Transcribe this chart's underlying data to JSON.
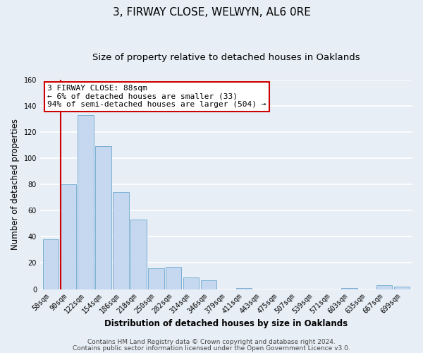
{
  "title": "3, FIRWAY CLOSE, WELWYN, AL6 0RE",
  "subtitle": "Size of property relative to detached houses in Oaklands",
  "xlabel": "Distribution of detached houses by size in Oaklands",
  "ylabel": "Number of detached properties",
  "bar_labels": [
    "58sqm",
    "90sqm",
    "122sqm",
    "154sqm",
    "186sqm",
    "218sqm",
    "250sqm",
    "282sqm",
    "314sqm",
    "346sqm",
    "379sqm",
    "411sqm",
    "443sqm",
    "475sqm",
    "507sqm",
    "539sqm",
    "571sqm",
    "603sqm",
    "635sqm",
    "667sqm",
    "699sqm"
  ],
  "bar_heights": [
    38,
    80,
    133,
    109,
    74,
    53,
    16,
    17,
    9,
    7,
    0,
    1,
    0,
    0,
    0,
    0,
    0,
    1,
    0,
    3,
    2
  ],
  "bar_color": "#c5d8f0",
  "bar_edge_color": "#7bafd4",
  "highlight_line_color": "#cc0000",
  "annotation_line1": "3 FIRWAY CLOSE: 88sqm",
  "annotation_line2": "← 6% of detached houses are smaller (33)",
  "annotation_line3": "94% of semi-detached houses are larger (504) →",
  "annotation_box_color": "#ffffff",
  "annotation_box_edge": "#cc0000",
  "ylim": [
    0,
    160
  ],
  "yticks": [
    0,
    20,
    40,
    60,
    80,
    100,
    120,
    140,
    160
  ],
  "footer1": "Contains HM Land Registry data © Crown copyright and database right 2024.",
  "footer2": "Contains public sector information licensed under the Open Government Licence v3.0.",
  "background_color": "#e8eef5",
  "plot_background": "#e8eef5",
  "grid_color": "#ffffff",
  "title_fontsize": 11,
  "subtitle_fontsize": 9.5,
  "axis_label_fontsize": 8.5,
  "tick_fontsize": 7,
  "footer_fontsize": 6.5,
  "annotation_fontsize": 8
}
